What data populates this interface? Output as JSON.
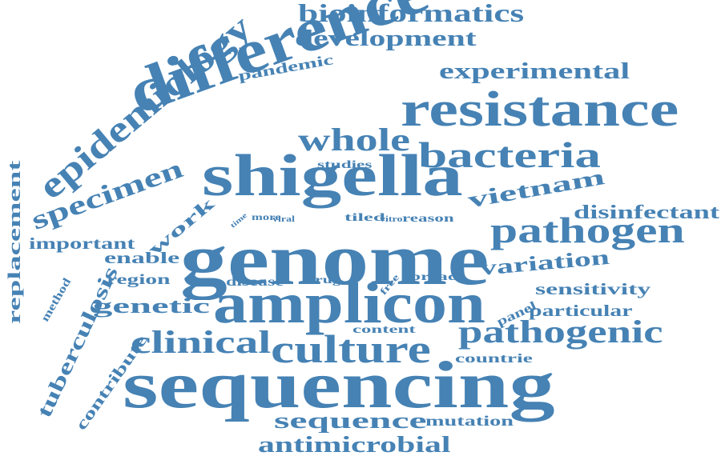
{
  "colors": {
    "word": "#4682b4",
    "background": "#ffffff"
  },
  "words": [
    "genome",
    "sequencing",
    "amplicon",
    "shigella",
    "difference",
    "resistance",
    "culture",
    "pathogen",
    "epidemiology",
    "bacteria",
    "pathogenic",
    "clinical",
    "whole",
    "specimen",
    "bioinformatics",
    "development",
    "experimental",
    "antimicrobial",
    "sequence",
    "vietnam",
    "variation",
    "genetic",
    "disinfectant",
    "replacement",
    "tuberculosis",
    "pandemic",
    "work",
    "important",
    "contribute",
    "enable",
    "region",
    "sensitivity",
    "particular",
    "disease",
    "mutation",
    "countrie",
    "panel",
    "drug",
    "spread",
    "content",
    "studies",
    "method",
    "free",
    "reason",
    "tiled",
    "viral",
    "more",
    "time",
    "vitro"
  ]
}
